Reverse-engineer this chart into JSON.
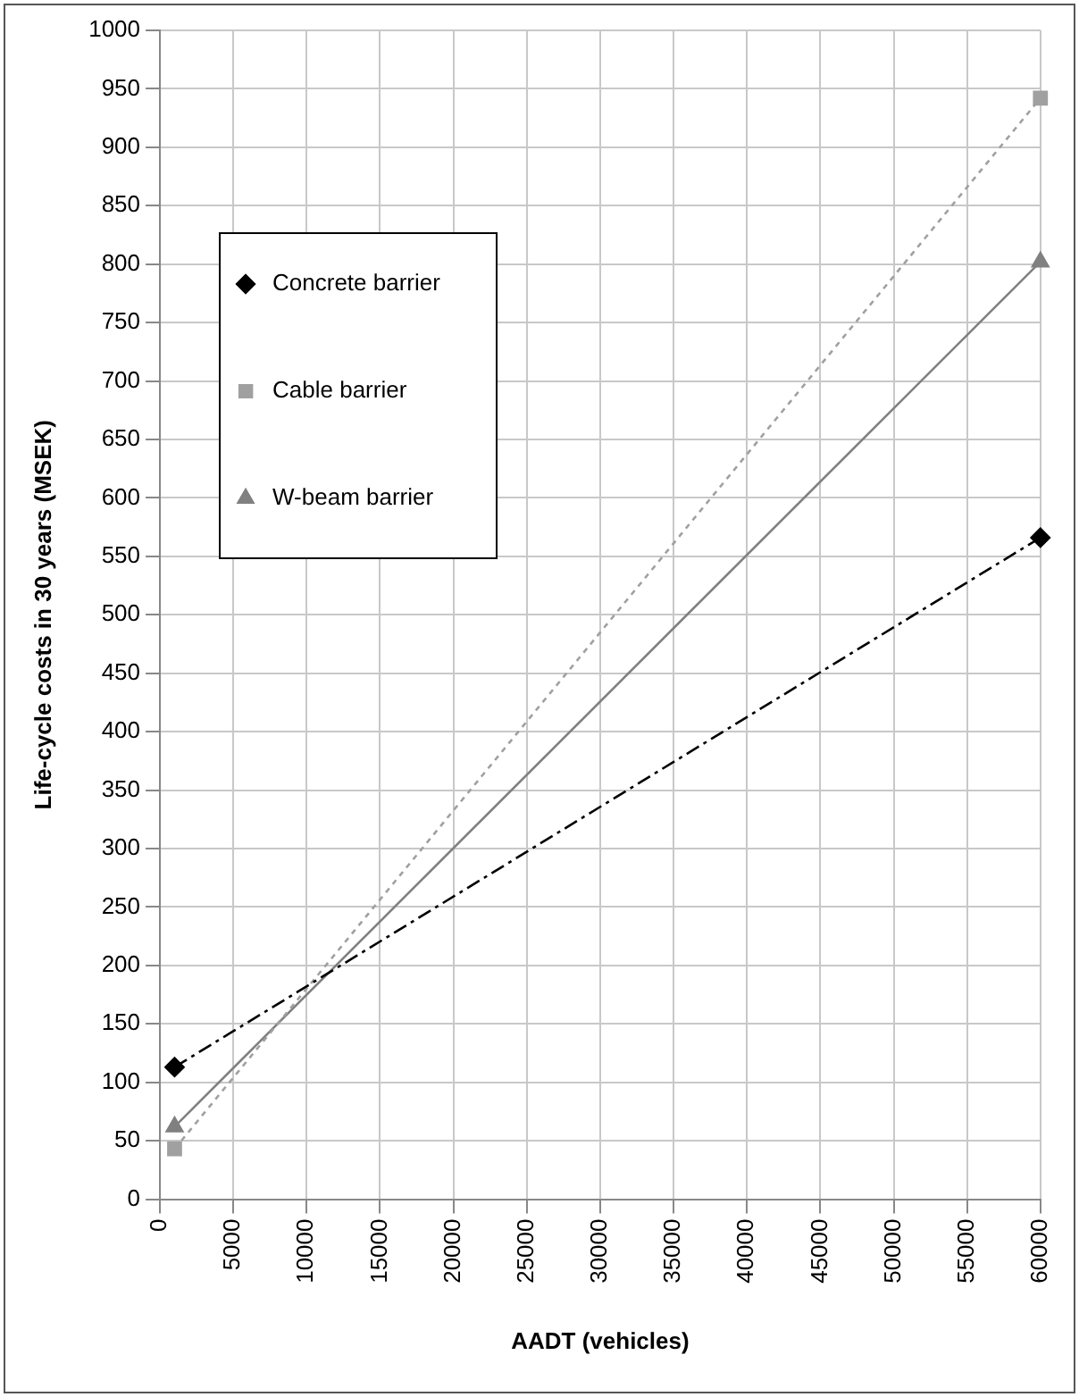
{
  "chart_data": {
    "type": "line",
    "xlabel": "AADT (vehicles)",
    "ylabel": "Life-cycle costs in 30 years (MSEK)",
    "x": [
      1000,
      60000
    ],
    "xlim": [
      0,
      60000
    ],
    "xticks": [
      0,
      5000,
      10000,
      15000,
      20000,
      25000,
      30000,
      35000,
      40000,
      45000,
      50000,
      55000,
      60000
    ],
    "ylim": [
      0,
      1000
    ],
    "yticks": [
      0,
      50,
      100,
      150,
      200,
      250,
      300,
      350,
      400,
      450,
      500,
      550,
      600,
      650,
      700,
      750,
      800,
      850,
      900,
      950,
      1000
    ],
    "grid": true,
    "legend": "top left",
    "series": [
      {
        "name": "Concrete barrier",
        "color": "#000000",
        "marker": "diamond",
        "line_style": "dashed",
        "values": [
          113,
          566
        ]
      },
      {
        "name": "Cable barrier",
        "color": "#a0a0a0",
        "marker": "square",
        "line_style": "dotted",
        "values": [
          43,
          942
        ]
      },
      {
        "name": "W-beam barrier",
        "color": "#808080",
        "marker": "triangle",
        "line_style": "solid",
        "values": [
          62,
          802
        ]
      }
    ]
  }
}
